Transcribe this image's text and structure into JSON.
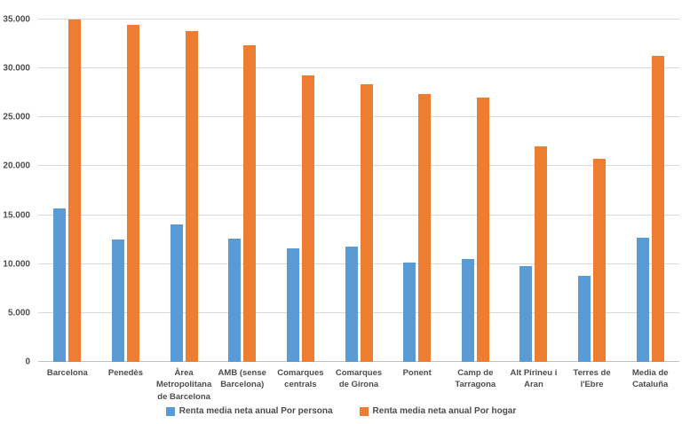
{
  "chart_data": {
    "type": "bar",
    "title": "",
    "xlabel": "",
    "ylabel": "",
    "categories": [
      "Barcelona",
      "Penedès",
      "Àrea Metropolitana de Barcelona",
      "AMB (sense Barcelona)",
      "Comarques centrals",
      "Comarques de Girona",
      "Ponent",
      "Camp de Tarragona",
      "Alt Pirineu i Aran",
      "Terres de l'Ebre",
      "Media de Cataluña"
    ],
    "series": [
      {
        "name": "Renta media neta anual Por persona",
        "color": "#5b9bd5",
        "values": [
          15700,
          12500,
          14100,
          12600,
          11600,
          11800,
          10200,
          10500,
          9800,
          8800,
          12700
        ]
      },
      {
        "name": "Renta media neta anual Por hogar",
        "color": "#ed7d31",
        "values": [
          35000,
          34500,
          33800,
          32400,
          29300,
          28400,
          27400,
          27000,
          22000,
          20800,
          31300
        ]
      }
    ],
    "ylim": [
      0,
      35000
    ],
    "yticks": [
      {
        "value": 0,
        "label": "0"
      },
      {
        "value": 5000,
        "label": "5.000"
      },
      {
        "value": 10000,
        "label": "10.000"
      },
      {
        "value": 15000,
        "label": "15.000"
      },
      {
        "value": 20000,
        "label": "20.000"
      },
      {
        "value": 25000,
        "label": "25.000"
      },
      {
        "value": 30000,
        "label": "30.000"
      },
      {
        "value": 35000,
        "label": "35.000"
      }
    ],
    "grid": "horizontal",
    "legend_position": "bottom"
  },
  "colors": {
    "background": "#ffffff",
    "gridline": "#d9d9d9",
    "axis_line": "#c0c0c0",
    "text": "#4d4d4d"
  }
}
